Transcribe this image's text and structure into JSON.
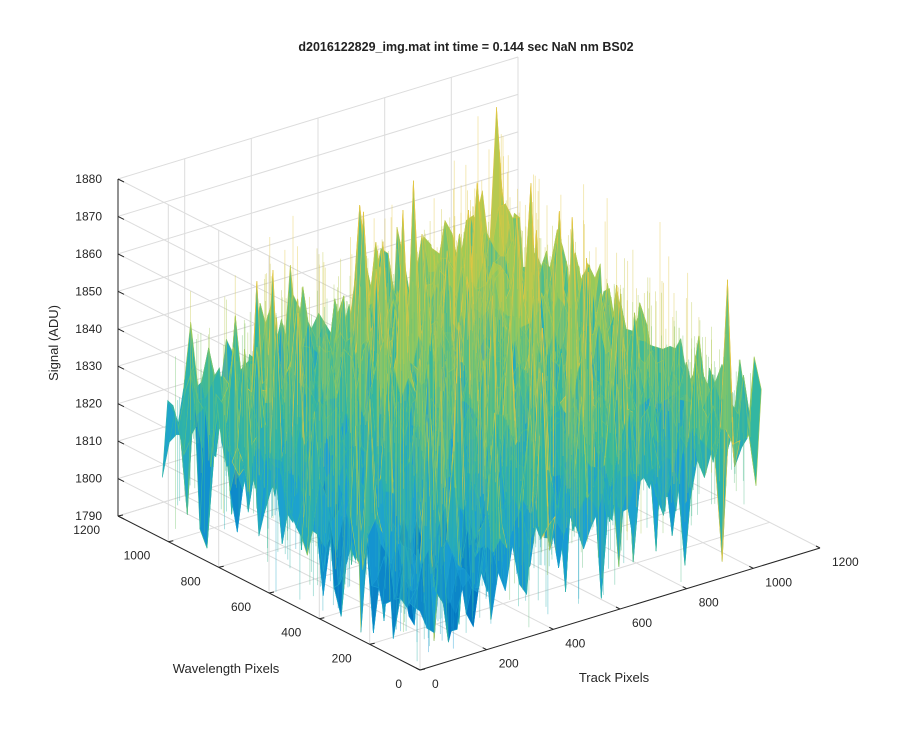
{
  "chart_data": {
    "type": "surface",
    "title": "d2016122829_img.mat int time = 0.144 sec  NaN nm BS02",
    "xlabel": "Track Pixels",
    "ylabel": "Wavelength Pixels",
    "zlabel": "Signal (ADU)",
    "xlim": [
      0,
      1200
    ],
    "ylim": [
      0,
      1200
    ],
    "zlim": [
      1790,
      1880
    ],
    "xticks": [
      0,
      200,
      400,
      600,
      800,
      1000,
      1200
    ],
    "yticks": [
      0,
      200,
      400,
      600,
      800,
      1000,
      1200
    ],
    "zticks": [
      1790,
      1800,
      1810,
      1820,
      1830,
      1840,
      1850,
      1860,
      1870,
      1880
    ],
    "data_extent": {
      "track_pixels": [
        0,
        1024
      ],
      "wavelength_pixels": [
        0,
        1024
      ]
    },
    "surface": {
      "mean_signal": 1816,
      "mean_signal_corner_origin": 1808,
      "mean_signal_corner_far": 1845,
      "noise_spread": 22,
      "colormap": [
        "#0072bd",
        "#1a9fd6",
        "#33b7a0",
        "#9acb58",
        "#e2c643"
      ]
    }
  }
}
